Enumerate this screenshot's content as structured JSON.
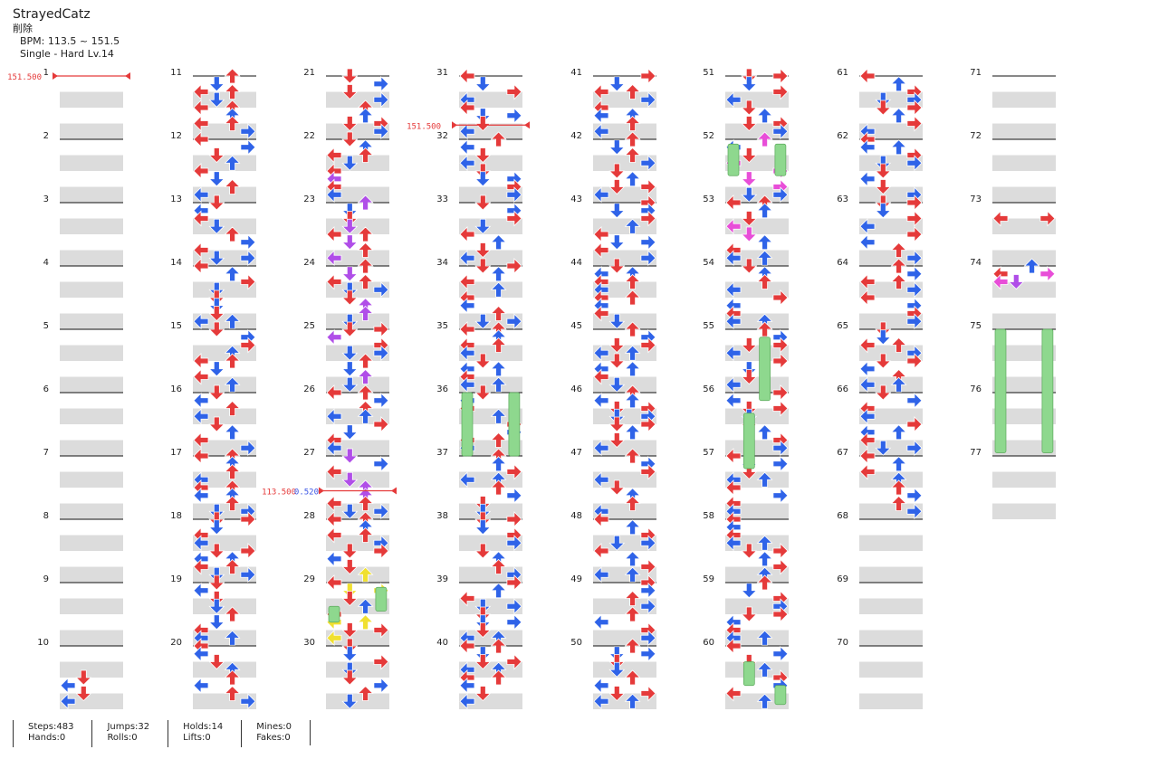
{
  "song": {
    "title": "StrayedCatz",
    "subtitle": "削除",
    "bpm": "BPM: 113.5 ~ 151.5",
    "chart": "Single - Hard  Lv.14"
  },
  "bpm_changes": [
    {
      "measure": 1,
      "beat": 0,
      "label": "151.500",
      "color": "#e53a3a"
    },
    {
      "measure": 31,
      "beat": 3.1,
      "label": "151.500",
      "color": "#e53a3a"
    },
    {
      "measure": 27,
      "beat": 2.2,
      "label": "113.500",
      "color": "#e53a3a",
      "stop": "0.520",
      "stop_color": "#3a55e5"
    }
  ],
  "measure_count": 77,
  "stats": [
    {
      "top": "Steps:483",
      "bottom": "Hands:0"
    },
    {
      "top": "Jumps:32",
      "bottom": "Rolls:0"
    },
    {
      "top": "Holds:14",
      "bottom": "Lifts:0"
    },
    {
      "top": "Mines:0",
      "bottom": "Fakes:0"
    }
  ],
  "colors": {
    "quarter": "#e53a3a",
    "eighth": "#2f63e8",
    "sixteenth": "#b04ee8",
    "twelfth": "#e84ed8",
    "twentyfourth": "#f0e030",
    "hold": "#8ed88e"
  }
}
